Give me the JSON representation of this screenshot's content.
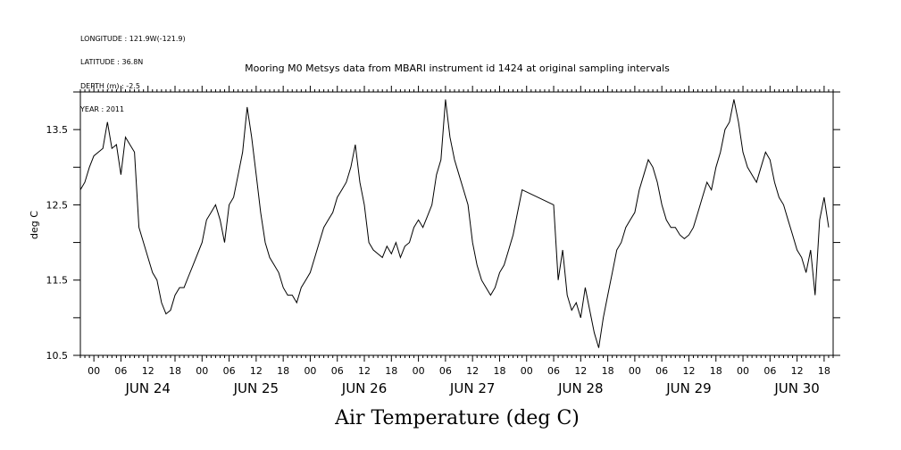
{
  "header": {
    "lines": [
      "LONGITUDE : 121.9W(-121.9)",
      "LATITUDE : 36.8N",
      "DEPTH (m) : -2.5",
      "YEAR : 2011"
    ]
  },
  "chart_data": {
    "type": "line",
    "title": "Mooring M0 Metsys data from MBARI instrument id 1424 at original sampling intervals",
    "ylabel": "deg C",
    "xlabel": "Air Temperature (deg C)",
    "ylim": [
      10.5,
      14.0
    ],
    "yticks": [
      10.5,
      11.5,
      12.5,
      13.5
    ],
    "x_hour_labels": [
      "00",
      "06",
      "12",
      "18",
      "00",
      "06",
      "12",
      "18",
      "00",
      "06",
      "12",
      "18",
      "00",
      "06",
      "12",
      "18",
      "00",
      "06",
      "12",
      "18",
      "00",
      "06",
      "12",
      "18",
      "00",
      "06",
      "12",
      "18"
    ],
    "day_labels": [
      "JUN 24",
      "JUN 25",
      "JUN 26",
      "JUN 27",
      "JUN 28",
      "JUN 29",
      "JUN 30"
    ],
    "x_units": "hours since JUN 24 00:00",
    "xlim": [
      -3,
      164
    ],
    "series": [
      {
        "values": [
          [
            -3,
            12.7
          ],
          [
            -2,
            12.8
          ],
          [
            -1,
            13.0
          ],
          [
            0,
            13.15
          ],
          [
            1,
            13.2
          ],
          [
            2,
            13.25
          ],
          [
            3,
            13.6
          ],
          [
            4,
            13.25
          ],
          [
            5,
            13.3
          ],
          [
            6,
            12.9
          ],
          [
            7,
            13.4
          ],
          [
            8,
            13.3
          ],
          [
            9,
            13.2
          ],
          [
            10,
            12.2
          ],
          [
            11,
            12.0
          ],
          [
            12,
            11.8
          ],
          [
            13,
            11.6
          ],
          [
            14,
            11.5
          ],
          [
            15,
            11.2
          ],
          [
            16,
            11.05
          ],
          [
            17,
            11.1
          ],
          [
            18,
            11.3
          ],
          [
            19,
            11.4
          ],
          [
            20,
            11.4
          ],
          [
            21,
            11.55
          ],
          [
            22,
            11.7
          ],
          [
            24,
            12.0
          ],
          [
            25,
            12.3
          ],
          [
            26,
            12.4
          ],
          [
            27,
            12.5
          ],
          [
            28,
            12.3
          ],
          [
            29,
            12.0
          ],
          [
            30,
            12.5
          ],
          [
            31,
            12.6
          ],
          [
            32,
            12.9
          ],
          [
            33,
            13.2
          ],
          [
            34,
            13.8
          ],
          [
            35,
            13.4
          ],
          [
            36,
            12.9
          ],
          [
            37,
            12.4
          ],
          [
            38,
            12.0
          ],
          [
            39,
            11.8
          ],
          [
            40,
            11.7
          ],
          [
            41,
            11.6
          ],
          [
            42,
            11.4
          ],
          [
            43,
            11.3
          ],
          [
            44,
            11.3
          ],
          [
            45,
            11.2
          ],
          [
            46,
            11.4
          ],
          [
            47,
            11.5
          ],
          [
            48,
            11.6
          ],
          [
            49,
            11.8
          ],
          [
            50,
            12.0
          ],
          [
            51,
            12.2
          ],
          [
            52,
            12.3
          ],
          [
            53,
            12.4
          ],
          [
            54,
            12.6
          ],
          [
            55,
            12.7
          ],
          [
            56,
            12.8
          ],
          [
            57,
            13.0
          ],
          [
            58,
            13.3
          ],
          [
            59,
            12.8
          ],
          [
            60,
            12.5
          ],
          [
            61,
            12.0
          ],
          [
            62,
            11.9
          ],
          [
            63,
            11.85
          ],
          [
            64,
            11.8
          ],
          [
            65,
            11.95
          ],
          [
            66,
            11.85
          ],
          [
            67,
            12.0
          ],
          [
            68,
            11.8
          ],
          [
            69,
            11.95
          ],
          [
            70,
            12.0
          ],
          [
            71,
            12.2
          ],
          [
            72,
            12.3
          ],
          [
            73,
            12.2
          ],
          [
            74,
            12.35
          ],
          [
            75,
            12.5
          ],
          [
            76,
            12.9
          ],
          [
            77,
            13.1
          ],
          [
            78,
            13.9
          ],
          [
            79,
            13.4
          ],
          [
            80,
            13.1
          ],
          [
            81,
            12.9
          ],
          [
            82,
            12.7
          ],
          [
            83,
            12.5
          ],
          [
            84,
            12.0
          ],
          [
            85,
            11.7
          ],
          [
            86,
            11.5
          ],
          [
            87,
            11.4
          ],
          [
            88,
            11.3
          ],
          [
            89,
            11.4
          ],
          [
            90,
            11.6
          ],
          [
            91,
            11.7
          ],
          [
            92,
            11.9
          ],
          [
            93,
            12.1
          ],
          [
            94,
            12.4
          ],
          [
            95,
            12.7
          ],
          [
            102,
            12.5
          ],
          [
            103,
            11.5
          ],
          [
            104,
            11.9
          ],
          [
            105,
            11.3
          ],
          [
            106,
            11.1
          ],
          [
            107,
            11.2
          ],
          [
            108,
            11.0
          ],
          [
            109,
            11.4
          ],
          [
            110,
            11.1
          ],
          [
            111,
            10.8
          ],
          [
            112,
            10.6
          ],
          [
            113,
            11.0
          ],
          [
            114,
            11.3
          ],
          [
            115,
            11.6
          ],
          [
            116,
            11.9
          ],
          [
            117,
            12.0
          ],
          [
            118,
            12.2
          ],
          [
            119,
            12.3
          ],
          [
            120,
            12.4
          ],
          [
            121,
            12.7
          ],
          [
            122,
            12.9
          ],
          [
            123,
            13.1
          ],
          [
            124,
            13.0
          ],
          [
            125,
            12.8
          ],
          [
            126,
            12.5
          ],
          [
            127,
            12.3
          ],
          [
            128,
            12.2
          ],
          [
            129,
            12.2
          ],
          [
            130,
            12.1
          ],
          [
            131,
            12.05
          ],
          [
            132,
            12.1
          ],
          [
            133,
            12.2
          ],
          [
            134,
            12.4
          ],
          [
            135,
            12.6
          ],
          [
            136,
            12.8
          ],
          [
            137,
            12.7
          ],
          [
            138,
            13.0
          ],
          [
            139,
            13.2
          ],
          [
            140,
            13.5
          ],
          [
            141,
            13.6
          ],
          [
            142,
            13.9
          ],
          [
            143,
            13.6
          ],
          [
            144,
            13.2
          ],
          [
            145,
            13.0
          ],
          [
            146,
            12.9
          ],
          [
            147,
            12.8
          ],
          [
            148,
            13.0
          ],
          [
            149,
            13.2
          ],
          [
            150,
            13.1
          ],
          [
            151,
            12.8
          ],
          [
            152,
            12.6
          ],
          [
            153,
            12.5
          ],
          [
            154,
            12.3
          ],
          [
            155,
            12.1
          ],
          [
            156,
            11.9
          ],
          [
            157,
            11.8
          ],
          [
            158,
            11.6
          ],
          [
            159,
            11.9
          ],
          [
            160,
            11.3
          ],
          [
            161,
            12.3
          ],
          [
            162,
            12.6
          ],
          [
            163,
            12.2
          ]
        ]
      }
    ]
  }
}
